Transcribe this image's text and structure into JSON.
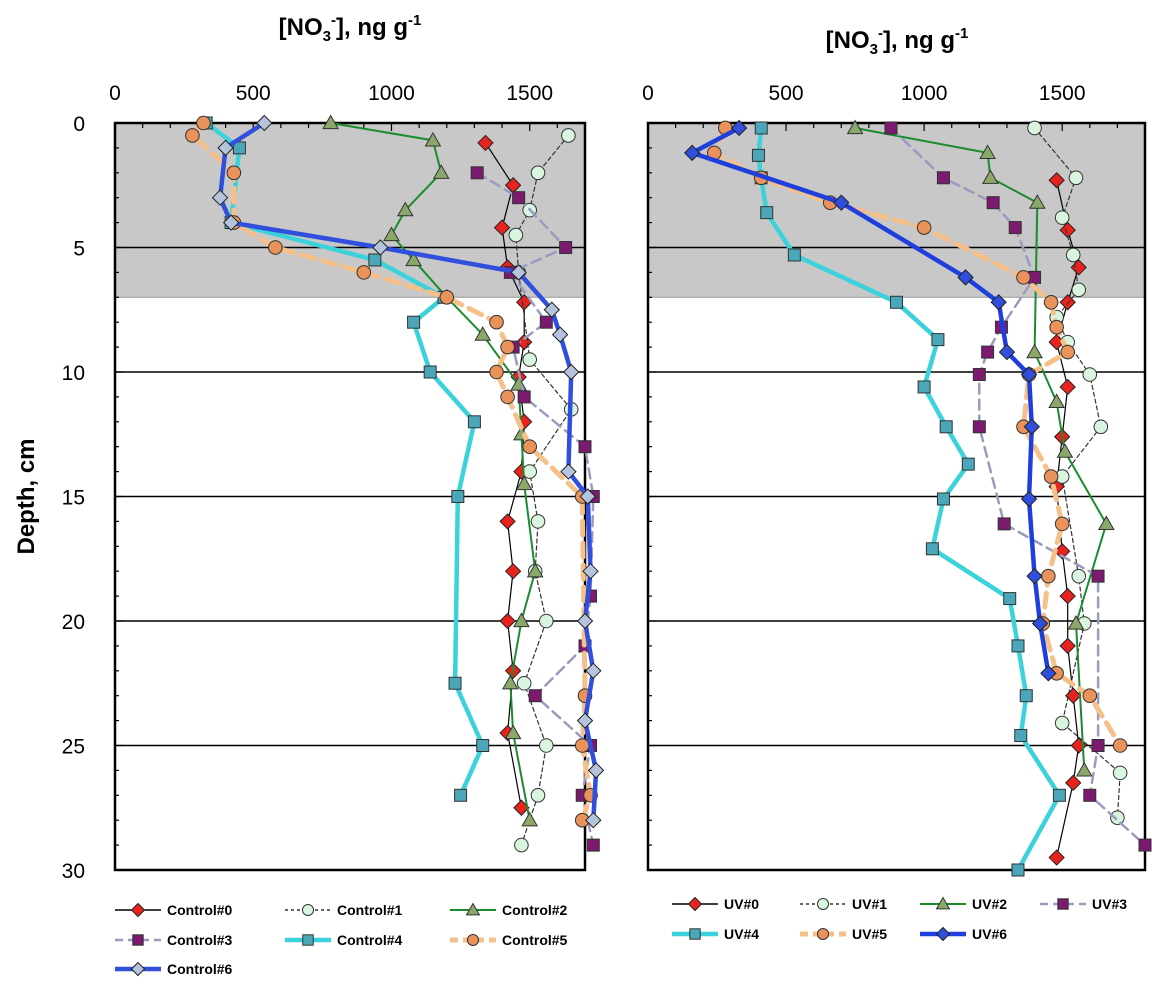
{
  "chart_data": [
    {
      "type": "line",
      "xlabel_main": "[NO",
      "xlabel_sub": "3",
      "xlabel_sup": "-",
      "xlabel_rest": "], ng g",
      "xlabel_unit_sup": "-1",
      "ylabel": "Depth, cm",
      "xlim": [
        0,
        1700
      ],
      "ylim": [
        30,
        0
      ],
      "xticks": [
        "0",
        "500",
        "1000",
        "1500"
      ],
      "yticks": [
        "0",
        "5",
        "10",
        "15",
        "20",
        "25",
        "30"
      ],
      "shaded_depth": [
        0,
        7
      ],
      "gridlines_y": [
        5,
        10,
        15,
        20,
        25
      ],
      "series": [
        {
          "name": "Control#0",
          "color": "#e8231e",
          "line": "#000000",
          "marker": "diamond",
          "style": "solid-thin",
          "points": [
            [
              1340,
              0.8
            ],
            [
              1440,
              2.5
            ],
            [
              1400,
              4.2
            ],
            [
              1420,
              5.8
            ],
            [
              1480,
              7.2
            ],
            [
              1480,
              8.8
            ],
            [
              1460,
              10.2
            ],
            [
              1480,
              12
            ],
            [
              1470,
              14
            ],
            [
              1420,
              16
            ],
            [
              1440,
              18
            ],
            [
              1420,
              20
            ],
            [
              1440,
              22
            ],
            [
              1420,
              24.5
            ],
            [
              1470,
              27.5
            ]
          ]
        },
        {
          "name": "Control#1",
          "color": "#d9f5df",
          "line": "#333333",
          "marker": "circle",
          "style": "dashed-thin",
          "points": [
            [
              1640,
              0.5
            ],
            [
              1530,
              2
            ],
            [
              1500,
              3.5
            ],
            [
              1450,
              4.5
            ],
            [
              1460,
              6
            ],
            [
              1500,
              9.5
            ],
            [
              1650,
              11.5
            ],
            [
              1500,
              14
            ],
            [
              1530,
              16
            ],
            [
              1520,
              18
            ],
            [
              1560,
              20
            ],
            [
              1480,
              22.5
            ],
            [
              1560,
              25
            ],
            [
              1530,
              27
            ],
            [
              1470,
              29
            ]
          ]
        },
        {
          "name": "Control#2",
          "color": "#8aa86a",
          "line": "#1a8c2e",
          "marker": "triangle",
          "style": "solid",
          "points": [
            [
              780,
              0
            ],
            [
              1150,
              0.7
            ],
            [
              1180,
              2
            ],
            [
              1050,
              3.5
            ],
            [
              1000,
              4.5
            ],
            [
              1080,
              5.5
            ],
            [
              1200,
              7
            ],
            [
              1330,
              8.5
            ],
            [
              1460,
              10.5
            ],
            [
              1470,
              12.5
            ],
            [
              1480,
              14.5
            ],
            [
              1520,
              18
            ],
            [
              1470,
              20
            ],
            [
              1430,
              22.5
            ],
            [
              1440,
              24.5
            ],
            [
              1500,
              28
            ]
          ]
        },
        {
          "name": "Control#3",
          "color": "#7b1a6e",
          "line": "#9b9bbd",
          "marker": "square",
          "style": "dashed",
          "points": [
            [
              1310,
              2
            ],
            [
              1460,
              3
            ],
            [
              1630,
              5
            ],
            [
              1430,
              6
            ],
            [
              1560,
              8
            ],
            [
              1440,
              9
            ],
            [
              1480,
              11
            ],
            [
              1700,
              13
            ],
            [
              1730,
              15
            ],
            [
              1720,
              19
            ],
            [
              1700,
              21
            ],
            [
              1520,
              23
            ],
            [
              1720,
              25
            ],
            [
              1690,
              27
            ],
            [
              1730,
              29
            ]
          ]
        },
        {
          "name": "Control#4",
          "color": "#4aa6b8",
          "line": "#3bd2db",
          "marker": "square",
          "style": "thick",
          "points": [
            [
              330,
              0
            ],
            [
              450,
              1
            ],
            [
              420,
              4
            ],
            [
              940,
              5.5
            ],
            [
              1190,
              7
            ],
            [
              1080,
              8
            ],
            [
              1140,
              10
            ],
            [
              1300,
              12
            ],
            [
              1240,
              15
            ],
            [
              1230,
              22.5
            ],
            [
              1330,
              25
            ],
            [
              1250,
              27
            ]
          ]
        },
        {
          "name": "Control#5",
          "color": "#e9935a",
          "line": "#f5c08a",
          "marker": "circle",
          "style": "dashed-thick",
          "points": [
            [
              320,
              0
            ],
            [
              280,
              0.5
            ],
            [
              430,
              2
            ],
            [
              430,
              4
            ],
            [
              580,
              5
            ],
            [
              900,
              6
            ],
            [
              1200,
              7
            ],
            [
              1380,
              8
            ],
            [
              1420,
              9
            ],
            [
              1380,
              10
            ],
            [
              1420,
              11
            ],
            [
              1500,
              13
            ],
            [
              1690,
              15
            ],
            [
              1700,
              23
            ],
            [
              1690,
              25
            ],
            [
              1720,
              27
            ],
            [
              1690,
              28
            ]
          ]
        },
        {
          "name": "Control#6",
          "color": "#b4c4dc",
          "line": "#2f4fdc",
          "marker": "diamond",
          "style": "thick",
          "points": [
            [
              540,
              0
            ],
            [
              400,
              1
            ],
            [
              380,
              3
            ],
            [
              420,
              4
            ],
            [
              960,
              5
            ],
            [
              1460,
              6
            ],
            [
              1580,
              7.5
            ],
            [
              1610,
              8.5
            ],
            [
              1650,
              10
            ],
            [
              1640,
              14
            ],
            [
              1710,
              15
            ],
            [
              1720,
              18
            ],
            [
              1700,
              20
            ],
            [
              1730,
              22
            ],
            [
              1700,
              24
            ],
            [
              1740,
              26
            ],
            [
              1730,
              28
            ]
          ]
        }
      ]
    },
    {
      "type": "line",
      "xlabel_main": "[NO",
      "xlabel_sub": "3",
      "xlabel_sup": "-",
      "xlabel_rest": "], ng g",
      "xlabel_unit_sup": "-1",
      "ylabel": "",
      "xlim": [
        0,
        1800
      ],
      "ylim": [
        30,
        0
      ],
      "xticks": [
        "0",
        "500",
        "1000",
        "1500"
      ],
      "yticks": [],
      "shaded_depth": [
        0,
        7
      ],
      "gridlines_y": [
        5,
        10,
        15,
        20,
        25
      ],
      "series": [
        {
          "name": "UV#0",
          "color": "#e8231e",
          "line": "#000000",
          "marker": "diamond",
          "style": "solid-thin",
          "points": [
            [
              1480,
              2.3
            ],
            [
              1520,
              4.3
            ],
            [
              1560,
              5.8
            ],
            [
              1520,
              7.2
            ],
            [
              1480,
              8.8
            ],
            [
              1520,
              10.6
            ],
            [
              1500,
              12.6
            ],
            [
              1480,
              14.6
            ],
            [
              1500,
              17.2
            ],
            [
              1520,
              19
            ],
            [
              1520,
              21
            ],
            [
              1540,
              23
            ],
            [
              1560,
              25
            ],
            [
              1540,
              26.5
            ],
            [
              1480,
              29.5
            ]
          ]
        },
        {
          "name": "UV#1",
          "color": "#d9f5df",
          "line": "#333333",
          "marker": "circle",
          "style": "dashed-thin",
          "points": [
            [
              1400,
              0.2
            ],
            [
              1550,
              2.2
            ],
            [
              1500,
              3.8
            ],
            [
              1540,
              5.3
            ],
            [
              1560,
              6.7
            ],
            [
              1480,
              7.8
            ],
            [
              1520,
              8.8
            ],
            [
              1600,
              10.1
            ],
            [
              1640,
              12.2
            ],
            [
              1500,
              14.2
            ],
            [
              1560,
              18.2
            ],
            [
              1580,
              20.1
            ],
            [
              1500,
              24.1
            ],
            [
              1710,
              26.1
            ],
            [
              1700,
              27.9
            ]
          ]
        },
        {
          "name": "UV#2",
          "color": "#8aa86a",
          "line": "#1a8c2e",
          "marker": "triangle",
          "style": "solid",
          "points": [
            [
              750,
              0.2
            ],
            [
              1230,
              1.2
            ],
            [
              1240,
              2.2
            ],
            [
              1410,
              3.2
            ],
            [
              1400,
              9.2
            ],
            [
              1480,
              11.2
            ],
            [
              1510,
              13.2
            ],
            [
              1660,
              16.1
            ],
            [
              1550,
              20.1
            ],
            [
              1580,
              26.0
            ]
          ]
        },
        {
          "name": "UV#3",
          "color": "#7b1a6e",
          "line": "#9b9bbd",
          "marker": "square",
          "style": "dashed",
          "points": [
            [
              880,
              0.2
            ],
            [
              1070,
              2.2
            ],
            [
              1250,
              3.2
            ],
            [
              1330,
              4.2
            ],
            [
              1400,
              6.2
            ],
            [
              1280,
              8.2
            ],
            [
              1230,
              9.2
            ],
            [
              1200,
              10.1
            ],
            [
              1200,
              12.2
            ],
            [
              1290,
              16.1
            ],
            [
              1630,
              18.2
            ],
            [
              1630,
              25.0
            ],
            [
              1600,
              27.0
            ],
            [
              1800,
              29.0
            ]
          ]
        },
        {
          "name": "UV#4",
          "color": "#4aa6b8",
          "line": "#3bd2db",
          "marker": "square",
          "style": "thick",
          "points": [
            [
              410,
              0.2
            ],
            [
              400,
              1.3
            ],
            [
              410,
              2.2
            ],
            [
              430,
              3.6
            ],
            [
              530,
              5.3
            ],
            [
              900,
              7.2
            ],
            [
              1050,
              8.7
            ],
            [
              1000,
              10.6
            ],
            [
              1080,
              12.2
            ],
            [
              1160,
              13.7
            ],
            [
              1070,
              15.1
            ],
            [
              1030,
              17.1
            ],
            [
              1310,
              19.1
            ],
            [
              1340,
              21.0
            ],
            [
              1370,
              23.0
            ],
            [
              1350,
              24.6
            ],
            [
              1490,
              27.0
            ],
            [
              1340,
              30.0
            ]
          ]
        },
        {
          "name": "UV#5",
          "color": "#e9935a",
          "line": "#f5c08a",
          "marker": "circle",
          "style": "dashed-thick",
          "points": [
            [
              280,
              0.2
            ],
            [
              240,
              1.2
            ],
            [
              410,
              2.2
            ],
            [
              660,
              3.2
            ],
            [
              1000,
              4.2
            ],
            [
              1360,
              6.2
            ],
            [
              1460,
              7.2
            ],
            [
              1480,
              8.2
            ],
            [
              1520,
              9.2
            ],
            [
              1380,
              10.1
            ],
            [
              1360,
              12.2
            ],
            [
              1460,
              14.2
            ],
            [
              1500,
              16.1
            ],
            [
              1450,
              18.2
            ],
            [
              1430,
              20.1
            ],
            [
              1480,
              22.1
            ],
            [
              1600,
              23.0
            ],
            [
              1710,
              25.0
            ]
          ]
        },
        {
          "name": "UV#6",
          "color": "#2f4fdc",
          "line": "#1f3fdc",
          "marker": "diamond",
          "style": "thick",
          "points": [
            [
              330,
              0.2
            ],
            [
              160,
              1.2
            ],
            [
              700,
              3.2
            ],
            [
              1150,
              6.2
            ],
            [
              1270,
              7.2
            ],
            [
              1300,
              9.2
            ],
            [
              1380,
              10.1
            ],
            [
              1390,
              12.2
            ],
            [
              1380,
              15.1
            ],
            [
              1400,
              18.2
            ],
            [
              1420,
              20.1
            ],
            [
              1450,
              22.1
            ]
          ]
        }
      ]
    }
  ]
}
